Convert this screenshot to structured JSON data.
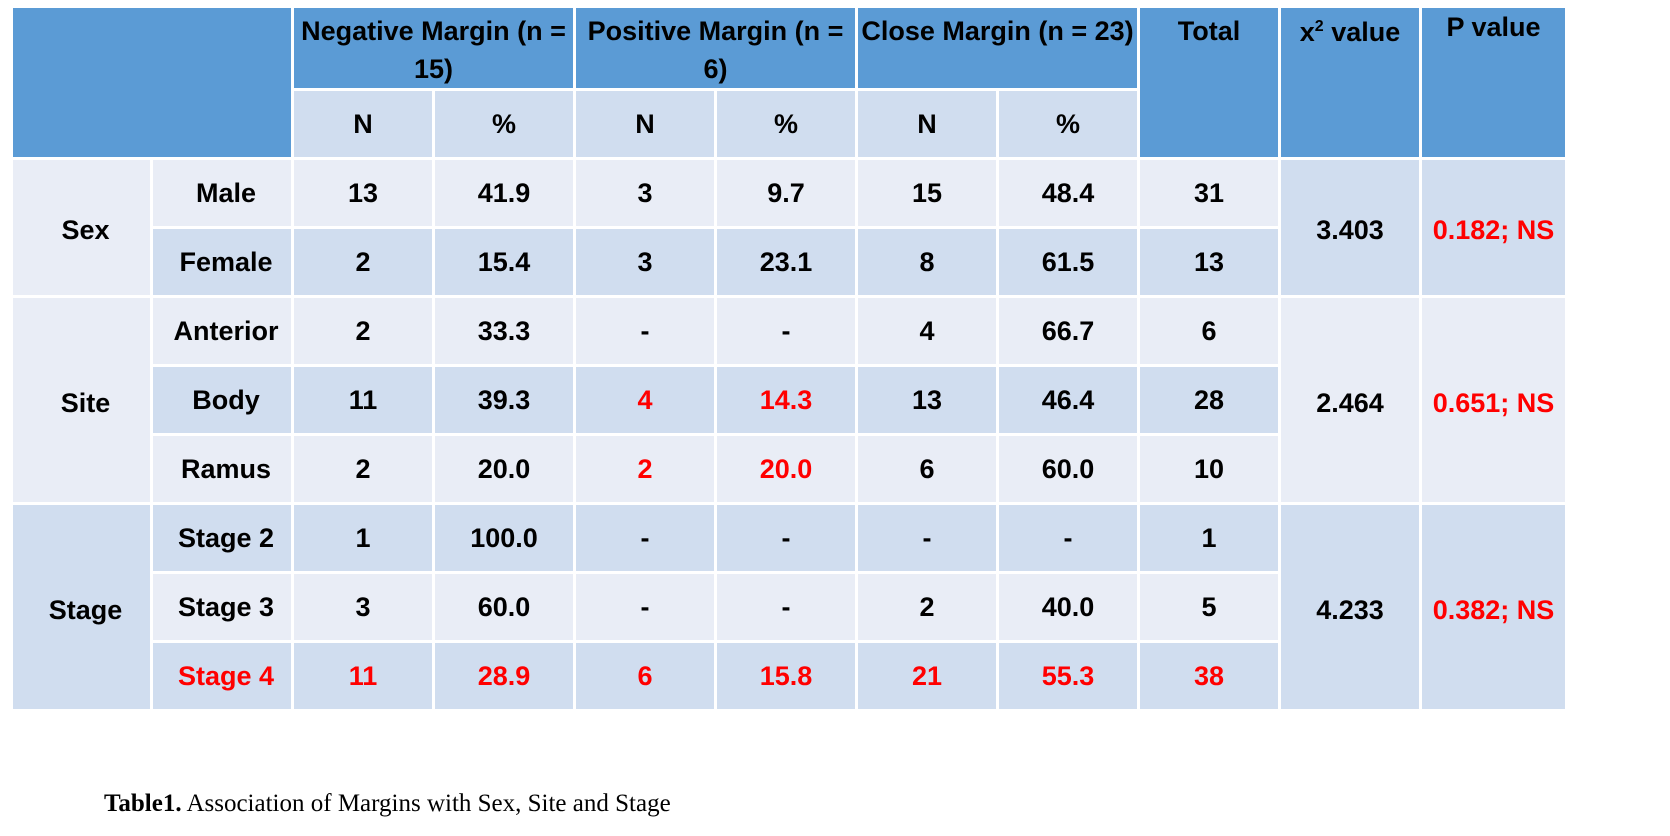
{
  "header": {
    "negative": "Negative Margin (n = 15)",
    "positive": "Positive Margin (n = 6)",
    "close": "Close Margin (n = 23)",
    "total": "Total",
    "chi_symbol": "x",
    "chi_sup": "2",
    "chi_rest": " value",
    "p_value": "P value",
    "sub": [
      "N",
      "%",
      "N",
      "%",
      "N",
      "%"
    ]
  },
  "groups": [
    {
      "category": "Sex",
      "chi": "3.403",
      "p": "0.182; NS",
      "rows": [
        {
          "label": "Male",
          "values": [
            "13",
            "41.9",
            "3",
            "9.7",
            "15",
            "48.4"
          ],
          "total": "31"
        },
        {
          "label": "Female",
          "values": [
            "2",
            "15.4",
            "3",
            "23.1",
            "8",
            "61.5"
          ],
          "total": "13"
        }
      ]
    },
    {
      "category": "Site",
      "chi": "2.464",
      "p": "0.651; NS",
      "rows": [
        {
          "label": "Anterior",
          "values": [
            "2",
            "33.3",
            "-",
            "-",
            "4",
            "66.7"
          ],
          "total": "6"
        },
        {
          "label": "Body",
          "values": [
            "11",
            "39.3",
            "4",
            "14.3",
            "13",
            "46.4"
          ],
          "total": "28"
        },
        {
          "label": "Ramus",
          "values": [
            "2",
            "20.0",
            "2",
            "20.0",
            "6",
            "60.0"
          ],
          "total": "10"
        }
      ]
    },
    {
      "category": "Stage",
      "chi": "4.233",
      "p": "0.382; NS",
      "rows": [
        {
          "label": "Stage 2",
          "values": [
            "1",
            "100.0",
            "-",
            "-",
            "-",
            "-"
          ],
          "total": "1"
        },
        {
          "label": "Stage 3",
          "values": [
            "3",
            "60.0",
            "-",
            "-",
            "2",
            "40.0"
          ],
          "total": "5"
        },
        {
          "label": "Stage 4",
          "values": [
            "11",
            "28.9",
            "6",
            "15.8",
            "21",
            "55.3"
          ],
          "total": "38"
        }
      ]
    }
  ],
  "caption": {
    "bold": "Table1.",
    "text": " Association of Margins with Sex, Site and Stage"
  },
  "colors": {
    "header_bg": "#5b9bd5",
    "light_row": "#e9edf6",
    "dark_row": "#d0ddef",
    "highlight": "#ff0000"
  }
}
